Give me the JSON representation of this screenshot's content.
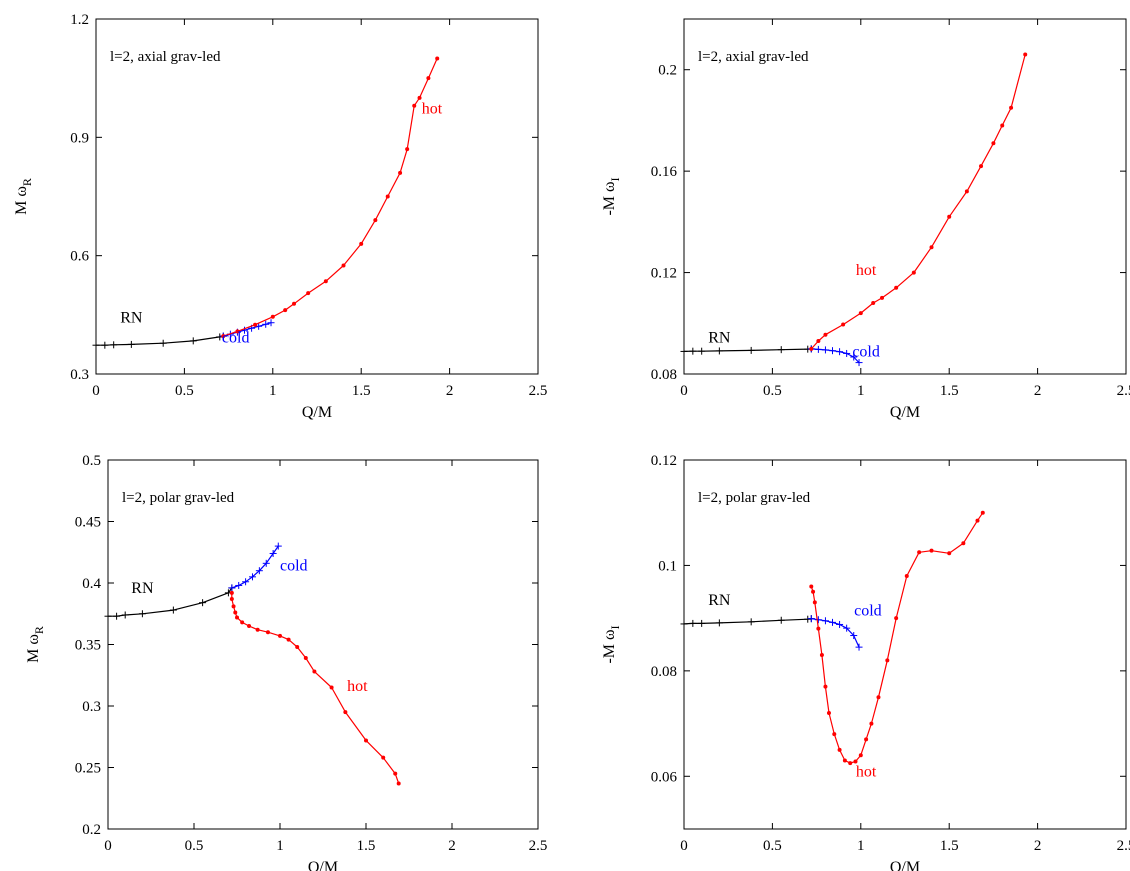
{
  "chart_data": [
    {
      "type": "line",
      "annotation": "l=2, axial grav-led",
      "xlabel": "Q/M",
      "ylabel": "M ω",
      "ylabel_sub": "R",
      "xlim": [
        0,
        2.5
      ],
      "ylim": [
        0.3,
        1.2
      ],
      "xticks": [
        "0",
        "0.5",
        "1",
        "1.5",
        "2",
        "2.5"
      ],
      "yticks": [
        "0.3",
        "0.6",
        "0.9",
        "1.2"
      ],
      "grid": false,
      "series": [
        {
          "name": "RN",
          "color": "#000000",
          "marker": "plus",
          "x": [
            0,
            0.05,
            0.1,
            0.2,
            0.38,
            0.55,
            0.7,
            0.72
          ],
          "y": [
            0.373,
            0.373,
            0.374,
            0.375,
            0.378,
            0.384,
            0.394,
            0.396
          ]
        },
        {
          "name": "cold",
          "color": "#0000ff",
          "marker": "plus",
          "x": [
            0.72,
            0.76,
            0.8,
            0.84,
            0.88,
            0.92,
            0.96,
            0.99
          ],
          "y": [
            0.396,
            0.401,
            0.406,
            0.411,
            0.416,
            0.421,
            0.426,
            0.43
          ]
        },
        {
          "name": "hot",
          "color": "#ff0000",
          "marker": "dot",
          "x": [
            0.72,
            0.8,
            0.9,
            1.0,
            1.07,
            1.12,
            1.2,
            1.3,
            1.4,
            1.5,
            1.58,
            1.65,
            1.72,
            1.76,
            1.8,
            1.83,
            1.88,
            1.93
          ],
          "y": [
            0.396,
            0.408,
            0.425,
            0.445,
            0.462,
            0.478,
            0.505,
            0.535,
            0.575,
            0.63,
            0.69,
            0.75,
            0.81,
            0.87,
            0.98,
            1.0,
            1.05,
            1.1
          ]
        }
      ],
      "series_labels": [
        {
          "text": "RN",
          "x": 0.2,
          "y": 0.43
        },
        {
          "text": "cold",
          "x": 0.79,
          "y": 0.38
        },
        {
          "text": "hot",
          "x": 1.9,
          "y": 0.96
        }
      ]
    },
    {
      "type": "line",
      "annotation": "l=2, axial grav-led",
      "xlabel": "Q/M",
      "ylabel": "-M ω",
      "ylabel_sub": "I",
      "xlim": [
        0,
        2.5
      ],
      "ylim": [
        0.08,
        0.22
      ],
      "xticks": [
        "0",
        "0.5",
        "1",
        "1.5",
        "2",
        "2.5"
      ],
      "yticks": [
        "0.08",
        "0.12",
        "0.16",
        "0.2"
      ],
      "grid": false,
      "series": [
        {
          "name": "RN",
          "color": "#000000",
          "marker": "plus",
          "x": [
            0,
            0.05,
            0.1,
            0.2,
            0.38,
            0.55,
            0.7,
            0.72
          ],
          "y": [
            0.0889,
            0.089,
            0.089,
            0.0891,
            0.0893,
            0.0896,
            0.0898,
            0.0899
          ]
        },
        {
          "name": "cold",
          "color": "#0000ff",
          "marker": "plus",
          "x": [
            0.72,
            0.76,
            0.8,
            0.84,
            0.88,
            0.92,
            0.96,
            0.99
          ],
          "y": [
            0.0899,
            0.0897,
            0.0895,
            0.0892,
            0.0888,
            0.0881,
            0.0867,
            0.0845
          ]
        },
        {
          "name": "hot",
          "color": "#ff0000",
          "marker": "dot",
          "x": [
            0.72,
            0.76,
            0.8,
            0.9,
            1.0,
            1.07,
            1.12,
            1.2,
            1.3,
            1.4,
            1.5,
            1.6,
            1.68,
            1.75,
            1.8,
            1.85,
            1.93
          ],
          "y": [
            0.0899,
            0.093,
            0.0955,
            0.0995,
            0.104,
            0.108,
            0.11,
            0.114,
            0.12,
            0.13,
            0.142,
            0.152,
            0.162,
            0.171,
            0.178,
            0.185,
            0.206
          ]
        }
      ],
      "series_labels": [
        {
          "text": "RN",
          "x": 0.2,
          "y": 0.0925
        },
        {
          "text": "cold",
          "x": 1.03,
          "y": 0.087
        },
        {
          "text": "hot",
          "x": 1.03,
          "y": 0.119
        }
      ]
    },
    {
      "type": "line",
      "annotation": "l=2, polar grav-led",
      "xlabel": "Q/M",
      "ylabel": "M ω",
      "ylabel_sub": "R",
      "xlim": [
        0,
        2.5
      ],
      "ylim": [
        0.2,
        0.5
      ],
      "xticks": [
        "0",
        "0.5",
        "1",
        "1.5",
        "2",
        "2.5"
      ],
      "yticks": [
        "0.2",
        "0.25",
        "0.3",
        "0.35",
        "0.4",
        "0.45",
        "0.5"
      ],
      "grid": false,
      "series": [
        {
          "name": "RN",
          "color": "#000000",
          "marker": "plus",
          "x": [
            0,
            0.05,
            0.1,
            0.2,
            0.38,
            0.55,
            0.7,
            0.72
          ],
          "y": [
            0.373,
            0.373,
            0.374,
            0.375,
            0.378,
            0.384,
            0.392,
            0.396
          ]
        },
        {
          "name": "cold",
          "color": "#0000ff",
          "marker": "plus",
          "x": [
            0.72,
            0.76,
            0.8,
            0.84,
            0.88,
            0.92,
            0.96,
            0.99
          ],
          "y": [
            0.396,
            0.398,
            0.401,
            0.405,
            0.41,
            0.416,
            0.424,
            0.43
          ]
        },
        {
          "name": "hot",
          "color": "#ff0000",
          "marker": "dot",
          "x": [
            0.72,
            0.72,
            0.73,
            0.74,
            0.75,
            0.78,
            0.82,
            0.87,
            0.93,
            1.0,
            1.05,
            1.1,
            1.15,
            1.2,
            1.3,
            1.38,
            1.5,
            1.6,
            1.67,
            1.69
          ],
          "y": [
            0.392,
            0.387,
            0.381,
            0.376,
            0.372,
            0.368,
            0.365,
            0.362,
            0.36,
            0.357,
            0.354,
            0.348,
            0.339,
            0.328,
            0.315,
            0.295,
            0.272,
            0.258,
            0.245,
            0.237
          ]
        }
      ],
      "series_labels": [
        {
          "text": "RN",
          "x": 0.2,
          "y": 0.392
        },
        {
          "text": "cold",
          "x": 1.08,
          "y": 0.41
        },
        {
          "text": "hot",
          "x": 1.45,
          "y": 0.312
        }
      ]
    },
    {
      "type": "line",
      "annotation": "l=2, polar grav-led",
      "xlabel": "Q/M",
      "ylabel": "-M ω",
      "ylabel_sub": "I",
      "xlim": [
        0,
        2.5
      ],
      "ylim": [
        0.05,
        0.12
      ],
      "xticks": [
        "0",
        "0.5",
        "1",
        "1.5",
        "2",
        "2.5"
      ],
      "yticks": [
        "0.06",
        "0.08",
        "0.1",
        "0.12"
      ],
      "grid": false,
      "series": [
        {
          "name": "RN",
          "color": "#000000",
          "marker": "plus",
          "x": [
            0,
            0.05,
            0.1,
            0.2,
            0.38,
            0.55,
            0.7,
            0.72
          ],
          "y": [
            0.0889,
            0.089,
            0.089,
            0.0891,
            0.0893,
            0.0896,
            0.0898,
            0.0899
          ]
        },
        {
          "name": "cold",
          "color": "#0000ff",
          "marker": "plus",
          "x": [
            0.72,
            0.76,
            0.8,
            0.84,
            0.88,
            0.92,
            0.96,
            0.99
          ],
          "y": [
            0.0899,
            0.0897,
            0.0895,
            0.0892,
            0.0888,
            0.0881,
            0.0867,
            0.0845
          ]
        },
        {
          "name": "hot",
          "color": "#ff0000",
          "marker": "dot",
          "x": [
            0.72,
            0.73,
            0.74,
            0.76,
            0.78,
            0.8,
            0.82,
            0.85,
            0.88,
            0.91,
            0.94,
            0.97,
            1.0,
            1.03,
            1.06,
            1.1,
            1.15,
            1.2,
            1.26,
            1.33,
            1.4,
            1.5,
            1.58,
            1.66,
            1.69
          ],
          "y": [
            0.096,
            0.095,
            0.093,
            0.088,
            0.083,
            0.077,
            0.072,
            0.068,
            0.065,
            0.063,
            0.0625,
            0.0628,
            0.064,
            0.067,
            0.07,
            0.075,
            0.082,
            0.09,
            0.098,
            0.1025,
            0.1028,
            0.1023,
            0.1042,
            0.1085,
            0.11
          ]
        }
      ],
      "series_labels": [
        {
          "text": "RN",
          "x": 0.2,
          "y": 0.0925
        },
        {
          "text": "cold",
          "x": 1.04,
          "y": 0.0905
        },
        {
          "text": "hot",
          "x": 1.03,
          "y": 0.06
        }
      ]
    }
  ]
}
